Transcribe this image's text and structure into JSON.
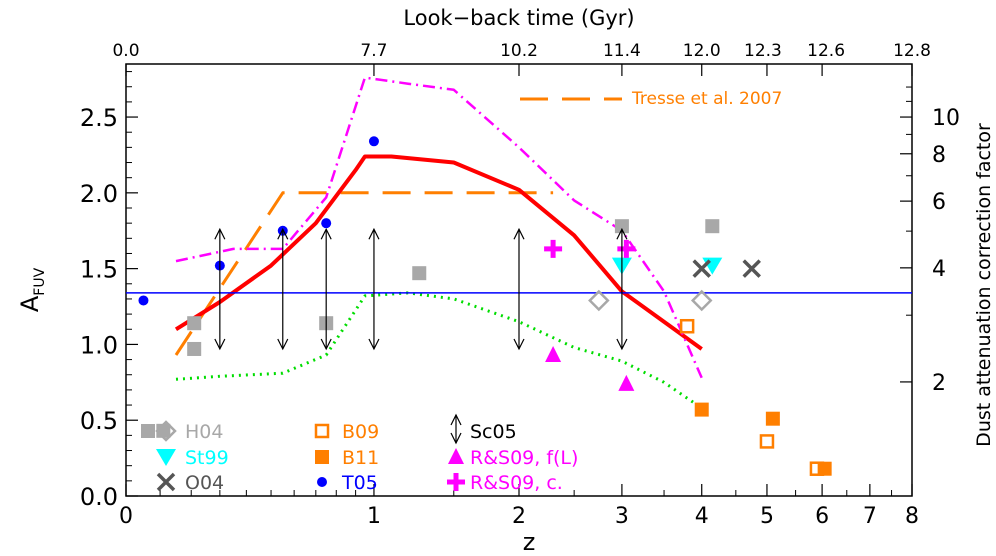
{
  "chart_data": {
    "type": "scatter",
    "x_scale": "log(1+z)",
    "xlim": [
      0,
      8
    ],
    "ylim": [
      0,
      2.85
    ],
    "bottom_axis": {
      "label": "z",
      "ticks": [
        "0",
        "1",
        "2",
        "3",
        "4",
        "5",
        "6",
        "7",
        "8"
      ],
      "tick_values": [
        0,
        1,
        2,
        3,
        4,
        5,
        6,
        7,
        8
      ]
    },
    "top_axis": {
      "label": "Look−back time (Gyr)",
      "ticks": [
        "0.0",
        "7.7",
        "10.2",
        "11.4",
        "12.0",
        "12.3",
        "12.6",
        "12.8"
      ],
      "tick_z": [
        0,
        1,
        2,
        3,
        4,
        5,
        6,
        8
      ]
    },
    "left_axis": {
      "label": "A",
      "label_sub": "FUV",
      "ticks": [
        "0.0",
        "0.5",
        "1.0",
        "1.5",
        "2.0",
        "2.5"
      ],
      "tick_values": [
        0,
        0.5,
        1.0,
        1.5,
        2.0,
        2.5
      ]
    },
    "right_axis": {
      "label": "Dust attenuation correction factor",
      "ticks": [
        "2",
        "4",
        "6",
        "8",
        "10"
      ],
      "tick_factors": [
        2,
        4,
        6,
        8,
        10
      ]
    },
    "series": [
      {
        "name": "H04",
        "marker": "square",
        "color": "#a8a8a8",
        "points": [
          [
            0.11,
            0.43
          ],
          [
            0.21,
            1.14
          ],
          [
            0.21,
            0.97
          ],
          [
            0.75,
            1.14
          ],
          [
            1.27,
            1.47
          ],
          [
            3.0,
            1.78
          ],
          [
            4.15,
            1.78
          ]
        ]
      },
      {
        "name": "H04 (open diamond)",
        "marker": "diamond-open",
        "color": "#a8a8a8",
        "points": [
          [
            2.75,
            1.29
          ],
          [
            4.0,
            1.29
          ]
        ]
      },
      {
        "name": "St99",
        "marker": "triangle-down",
        "color": "#00ffff",
        "points": [
          [
            3.0,
            1.52
          ],
          [
            4.15,
            1.52
          ]
        ]
      },
      {
        "name": "O04",
        "marker": "x",
        "color": "#555555",
        "points": [
          [
            4.0,
            1.5
          ],
          [
            4.75,
            1.5
          ]
        ]
      },
      {
        "name": "B09",
        "marker": "square-open",
        "color": "#ff7f00",
        "points": [
          [
            3.8,
            1.12
          ],
          [
            5.0,
            0.36
          ],
          [
            5.9,
            0.18
          ]
        ]
      },
      {
        "name": "B11",
        "marker": "square",
        "color": "#ff7f00",
        "points": [
          [
            4.0,
            0.57
          ],
          [
            5.1,
            0.51
          ],
          [
            6.05,
            0.18
          ]
        ]
      },
      {
        "name": "T05",
        "marker": "circle",
        "color": "#0000ff",
        "points": [
          [
            0.05,
            1.29
          ],
          [
            0.3,
            1.52
          ],
          [
            0.55,
            1.75
          ],
          [
            0.75,
            1.8
          ],
          [
            1.0,
            2.34
          ]
        ]
      },
      {
        "name": "R&S09, f(L)",
        "marker": "triangle-up",
        "color": "#ff00ff",
        "points": [
          [
            2.3,
            0.93
          ],
          [
            3.05,
            0.74
          ]
        ]
      },
      {
        "name": "R&S09, c.",
        "marker": "plus",
        "color": "#ff00ff",
        "points": [
          [
            2.3,
            1.63
          ],
          [
            3.05,
            1.63
          ]
        ]
      },
      {
        "name": "Sc05",
        "marker": "double-arrow",
        "color": "#000000",
        "ranges": [
          [
            0.3,
            0.97,
            1.76
          ],
          [
            0.55,
            0.97,
            1.76
          ],
          [
            0.75,
            0.97,
            1.76
          ],
          [
            1.0,
            0.97,
            1.76
          ],
          [
            2.0,
            0.97,
            1.76
          ],
          [
            3.0,
            0.97,
            1.76
          ]
        ]
      }
    ],
    "lines": [
      {
        "name": "Tresse et al. 2007",
        "style": "dashed",
        "color": "#ff7f00",
        "points": [
          [
            0.15,
            0.93
          ],
          [
            0.55,
            2.0
          ],
          [
            2.0,
            2.0
          ],
          [
            2.3,
            2.0
          ]
        ]
      },
      {
        "name": "best fit",
        "style": "solid",
        "color": "#ff0000",
        "points": [
          [
            0.15,
            1.1
          ],
          [
            0.3,
            1.28
          ],
          [
            0.5,
            1.52
          ],
          [
            0.7,
            1.8
          ],
          [
            0.9,
            2.15
          ],
          [
            0.95,
            2.24
          ],
          [
            1.1,
            2.24
          ],
          [
            1.5,
            2.2
          ],
          [
            2.0,
            2.02
          ],
          [
            2.5,
            1.72
          ],
          [
            3.0,
            1.35
          ],
          [
            3.5,
            1.15
          ],
          [
            4.0,
            0.97
          ]
        ]
      },
      {
        "name": "upper envelope",
        "style": "dash-dot",
        "color": "#ff00ff",
        "points": [
          [
            0.15,
            1.55
          ],
          [
            0.35,
            1.63
          ],
          [
            0.55,
            1.63
          ],
          [
            0.75,
            1.97
          ],
          [
            0.95,
            2.76
          ],
          [
            1.2,
            2.72
          ],
          [
            1.5,
            2.68
          ],
          [
            2.0,
            2.3
          ],
          [
            2.5,
            1.95
          ],
          [
            3.0,
            1.75
          ],
          [
            3.5,
            1.35
          ],
          [
            4.0,
            0.78
          ]
        ]
      },
      {
        "name": "lower envelope",
        "style": "dotted",
        "color": "#00dd00",
        "points": [
          [
            0.15,
            0.77
          ],
          [
            0.3,
            0.79
          ],
          [
            0.55,
            0.81
          ],
          [
            0.75,
            0.93
          ],
          [
            0.95,
            1.32
          ],
          [
            1.2,
            1.34
          ],
          [
            1.5,
            1.3
          ],
          [
            2.0,
            1.15
          ],
          [
            2.5,
            0.98
          ],
          [
            3.0,
            0.89
          ],
          [
            3.5,
            0.75
          ],
          [
            4.0,
            0.58
          ]
        ]
      },
      {
        "name": "reference",
        "style": "solid",
        "color": "#0000ff",
        "points": [
          [
            0,
            1.34
          ],
          [
            8,
            1.34
          ]
        ]
      }
    ],
    "annotation": {
      "text": "Tresse et al. 2007",
      "color": "#ff7f00"
    },
    "legend": [
      {
        "label": "H04",
        "color": "#a8a8a8",
        "marker": "square+diamond-open"
      },
      {
        "label": "St99",
        "color": "#00ffff",
        "marker": "triangle-down"
      },
      {
        "label": "O04",
        "color": "#555555",
        "marker": "x"
      },
      {
        "label": "B09",
        "color": "#ff7f00",
        "marker": "square-open"
      },
      {
        "label": "B11",
        "color": "#ff7f00",
        "marker": "square"
      },
      {
        "label": "T05",
        "color": "#0000ff",
        "marker": "circle"
      },
      {
        "label": "Sc05",
        "color": "#000000",
        "marker": "double-arrow"
      },
      {
        "label": "R&S09, f(L)",
        "color": "#ff00ff",
        "marker": "triangle-up"
      },
      {
        "label": "R&S09, c.",
        "color": "#ff00ff",
        "marker": "plus"
      }
    ]
  }
}
